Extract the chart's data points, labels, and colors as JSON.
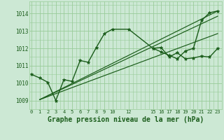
{
  "bg_color": "#cce8d4",
  "grid_color": "#99cc99",
  "line_color": "#1a5c1a",
  "marker_color": "#1a5c1a",
  "xlabel": "Graphe pression niveau de la mer (hPa)",
  "xlabel_fontsize": 7,
  "ylim": [
    1008.5,
    1014.7
  ],
  "yticks": [
    1009,
    1010,
    1011,
    1012,
    1013,
    1014
  ],
  "xlim": [
    -0.3,
    23.5
  ],
  "main_x": [
    0,
    1,
    2,
    3,
    4,
    5,
    6,
    7,
    8,
    9,
    10,
    12,
    15,
    16,
    17,
    18,
    19,
    20,
    21,
    22,
    23
  ],
  "main_y": [
    1010.5,
    1010.3,
    1010.05,
    1009.0,
    1010.2,
    1010.1,
    1011.3,
    1011.2,
    1012.05,
    1012.85,
    1013.1,
    1013.1,
    1012.0,
    1012.05,
    1011.5,
    1011.75,
    1011.4,
    1011.45,
    1011.55,
    1011.5,
    1012.0
  ],
  "extra_x": [
    15,
    16,
    17,
    18,
    19,
    20,
    21,
    22,
    23
  ],
  "extra_y": [
    1012.0,
    1011.8,
    1011.6,
    1011.4,
    1011.85,
    1012.0,
    1013.6,
    1014.05,
    1014.15
  ],
  "trend1_x": [
    1,
    23
  ],
  "trend1_y": [
    1009.05,
    1012.85
  ],
  "trend2_x": [
    1,
    23
  ],
  "trend2_y": [
    1009.05,
    1013.85
  ],
  "trend3_x": [
    1,
    23
  ],
  "trend3_y": [
    1009.05,
    1014.15
  ]
}
